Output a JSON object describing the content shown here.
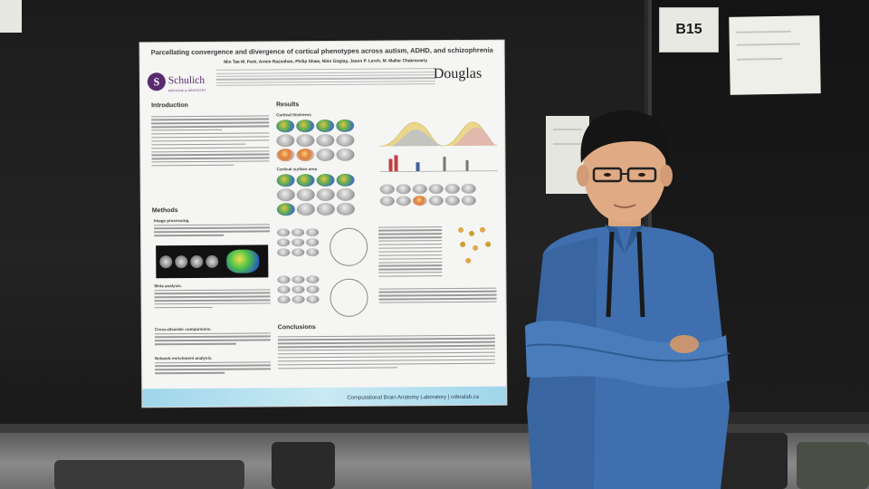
{
  "booth": {
    "label": "B15"
  },
  "poster": {
    "title": "Parcellating convergence and divergence of cortical phenotypes across autism, ADHD, and schizophrenia",
    "authors": "Min Tae M. Park, Armin Raznahan, Philip Shaw, Nitin Gogtay, Jason P. Lerch, M. Mallar Chakravarty",
    "logo_left": "Schulich",
    "logo_left_sub": "MEDICINE & DENTISTRY",
    "logo_right": "Douglas",
    "sections": {
      "introduction": "Introduction",
      "methods": "Methods",
      "results": "Results",
      "conclusions": "Conclusions"
    },
    "results_sub": {
      "thickness": "Cortical thickness",
      "surface": "Cortical surface area"
    },
    "methods_sub": {
      "processing": "Image processing.",
      "meta": "Meta analysis.",
      "cross": "Cross-disorder comparisons.",
      "network": "Network enrichment analysis."
    },
    "footer": "Computational Brain Anatomy Laboratory | cobralab.ca"
  },
  "colors": {
    "poster_bg": "#f5f5f3",
    "footer_band": "#9fd6ea",
    "shirt": "#3f6fae",
    "board": "#1c1c1c"
  }
}
